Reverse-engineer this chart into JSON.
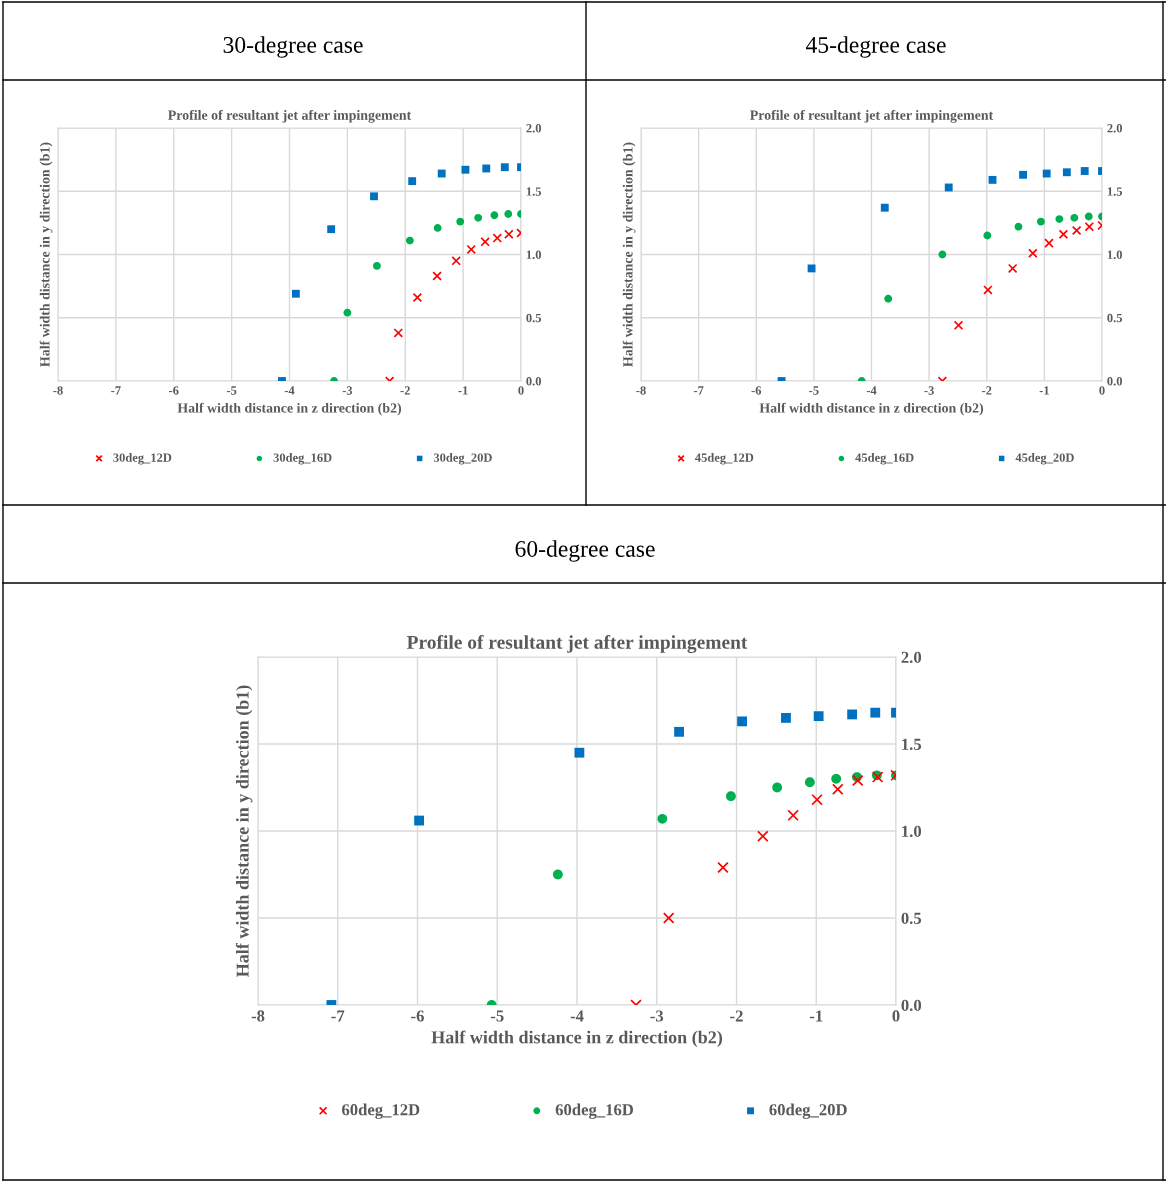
{
  "chart_data": [
    {
      "type": "scatter",
      "subtitle": "30-degree case",
      "title": "Profile of resultant jet after impingement",
      "xlabel": "Half width distance in z direction (b2)",
      "ylabel": "Half width distance in y direction (b1)",
      "xlim": [
        -8,
        0
      ],
      "xticks": [
        -8,
        -7,
        -6,
        -5,
        -4,
        -3,
        -2,
        -1,
        0
      ],
      "ylim": [
        0,
        2
      ],
      "yticks": [
        {
          "value": 0,
          "label": "0.0"
        },
        {
          "value": 0.5,
          "label": "0.5"
        },
        {
          "value": 1,
          "label": "1.0"
        },
        {
          "value": 1.5,
          "label": "1.5"
        },
        {
          "value": 2,
          "label": "2.0"
        }
      ],
      "grid": true,
      "legend": "bottom",
      "series": [
        {
          "name": "30deg_12D",
          "color": "#ff0000",
          "marker": "cross",
          "x": [
            -2.27,
            -2.12,
            -1.79,
            -1.45,
            -1.12,
            -0.86,
            -0.62,
            -0.41,
            -0.21,
            0
          ],
          "values": [
            0,
            0.38,
            0.66,
            0.83,
            0.95,
            1.04,
            1.1,
            1.13,
            1.16,
            1.17
          ]
        },
        {
          "name": "30deg_16D",
          "color": "#00b050",
          "marker": "circle",
          "x": [
            -3.23,
            -3.0,
            -2.49,
            -1.92,
            -1.44,
            -1.05,
            -0.74,
            -0.46,
            -0.22,
            0
          ],
          "values": [
            0,
            0.54,
            0.91,
            1.11,
            1.21,
            1.26,
            1.29,
            1.31,
            1.32,
            1.32
          ]
        },
        {
          "name": "30deg_20D",
          "color": "#0070c0",
          "marker": "square",
          "x": [
            -4.13,
            -3.89,
            -3.28,
            -2.54,
            -1.88,
            -1.37,
            -0.96,
            -0.6,
            -0.28,
            0
          ],
          "values": [
            0,
            0.69,
            1.2,
            1.46,
            1.58,
            1.64,
            1.67,
            1.68,
            1.69,
            1.69
          ]
        }
      ]
    },
    {
      "type": "scatter",
      "subtitle": "45-degree case",
      "title": "Profile of resultant jet after impingement",
      "xlabel": "Half width distance in z direction (b2)",
      "ylabel": "Half width distance in y direction (b1)",
      "xlim": [
        -8,
        0
      ],
      "xticks": [
        -8,
        -7,
        -6,
        -5,
        -4,
        -3,
        -2,
        -1,
        0
      ],
      "ylim": [
        0,
        2
      ],
      "yticks": [
        {
          "value": 0,
          "label": "0.0"
        },
        {
          "value": 0.5,
          "label": "0.5"
        },
        {
          "value": 1,
          "label": "1.0"
        },
        {
          "value": 1.5,
          "label": "1.5"
        },
        {
          "value": 2,
          "label": "2.0"
        }
      ],
      "grid": true,
      "legend": "bottom",
      "series": [
        {
          "name": "45deg_12D",
          "color": "#ff0000",
          "marker": "cross",
          "x": [
            -2.77,
            -2.49,
            -1.98,
            -1.55,
            -1.2,
            -0.92,
            -0.67,
            -0.44,
            -0.22,
            0
          ],
          "values": [
            0,
            0.44,
            0.72,
            0.89,
            1.01,
            1.09,
            1.16,
            1.19,
            1.22,
            1.23
          ]
        },
        {
          "name": "45deg_16D",
          "color": "#00b050",
          "marker": "circle",
          "x": [
            -4.17,
            -3.71,
            -2.77,
            -1.99,
            -1.45,
            -1.06,
            -0.74,
            -0.48,
            -0.23,
            0
          ],
          "values": [
            0,
            0.65,
            1.0,
            1.15,
            1.22,
            1.26,
            1.28,
            1.29,
            1.3,
            1.3
          ]
        },
        {
          "name": "45deg_20D",
          "color": "#0070c0",
          "marker": "square",
          "x": [
            -5.56,
            -5.04,
            -3.77,
            -2.66,
            -1.9,
            -1.37,
            -0.96,
            -0.61,
            -0.3,
            0
          ],
          "values": [
            0,
            0.89,
            1.37,
            1.53,
            1.59,
            1.63,
            1.64,
            1.65,
            1.66,
            1.66
          ]
        }
      ]
    },
    {
      "type": "scatter",
      "subtitle": "60-degree case",
      "title": "Profile of resultant jet after impingement",
      "xlabel": "Half width distance in z direction (b2)",
      "ylabel": "Half width distance in y direction (b1)",
      "xlim": [
        -8,
        0
      ],
      "xticks": [
        -8,
        -7,
        -6,
        -5,
        -4,
        -3,
        -2,
        -1,
        0
      ],
      "ylim": [
        0,
        2
      ],
      "yticks": [
        {
          "value": 0,
          "label": "0.0"
        },
        {
          "value": 0.5,
          "label": "0.5"
        },
        {
          "value": 1,
          "label": "1.0"
        },
        {
          "value": 1.5,
          "label": "1.5"
        },
        {
          "value": 2,
          "label": "2.0"
        }
      ],
      "grid": true,
      "legend": "bottom",
      "series": [
        {
          "name": "60deg_12D",
          "color": "#ff0000",
          "marker": "cross",
          "x": [
            -3.26,
            -2.85,
            -2.17,
            -1.67,
            -1.29,
            -0.99,
            -0.73,
            -0.48,
            -0.23,
            0
          ],
          "values": [
            0,
            0.5,
            0.79,
            0.97,
            1.09,
            1.18,
            1.24,
            1.29,
            1.31,
            1.32
          ]
        },
        {
          "name": "60deg_16D",
          "color": "#00b050",
          "marker": "circle",
          "x": [
            -5.07,
            -4.24,
            -2.93,
            -2.07,
            -1.49,
            -1.08,
            -0.75,
            -0.49,
            -0.24,
            0
          ],
          "values": [
            0,
            0.75,
            1.07,
            1.2,
            1.25,
            1.28,
            1.3,
            1.31,
            1.32,
            1.32
          ]
        },
        {
          "name": "60deg_20D",
          "color": "#0070c0",
          "marker": "square",
          "x": [
            -7.08,
            -5.98,
            -3.97,
            -2.72,
            -1.93,
            -1.38,
            -0.97,
            -0.55,
            -0.26,
            0
          ],
          "values": [
            0,
            1.06,
            1.45,
            1.57,
            1.63,
            1.65,
            1.66,
            1.67,
            1.68,
            1.68
          ]
        }
      ]
    }
  ]
}
